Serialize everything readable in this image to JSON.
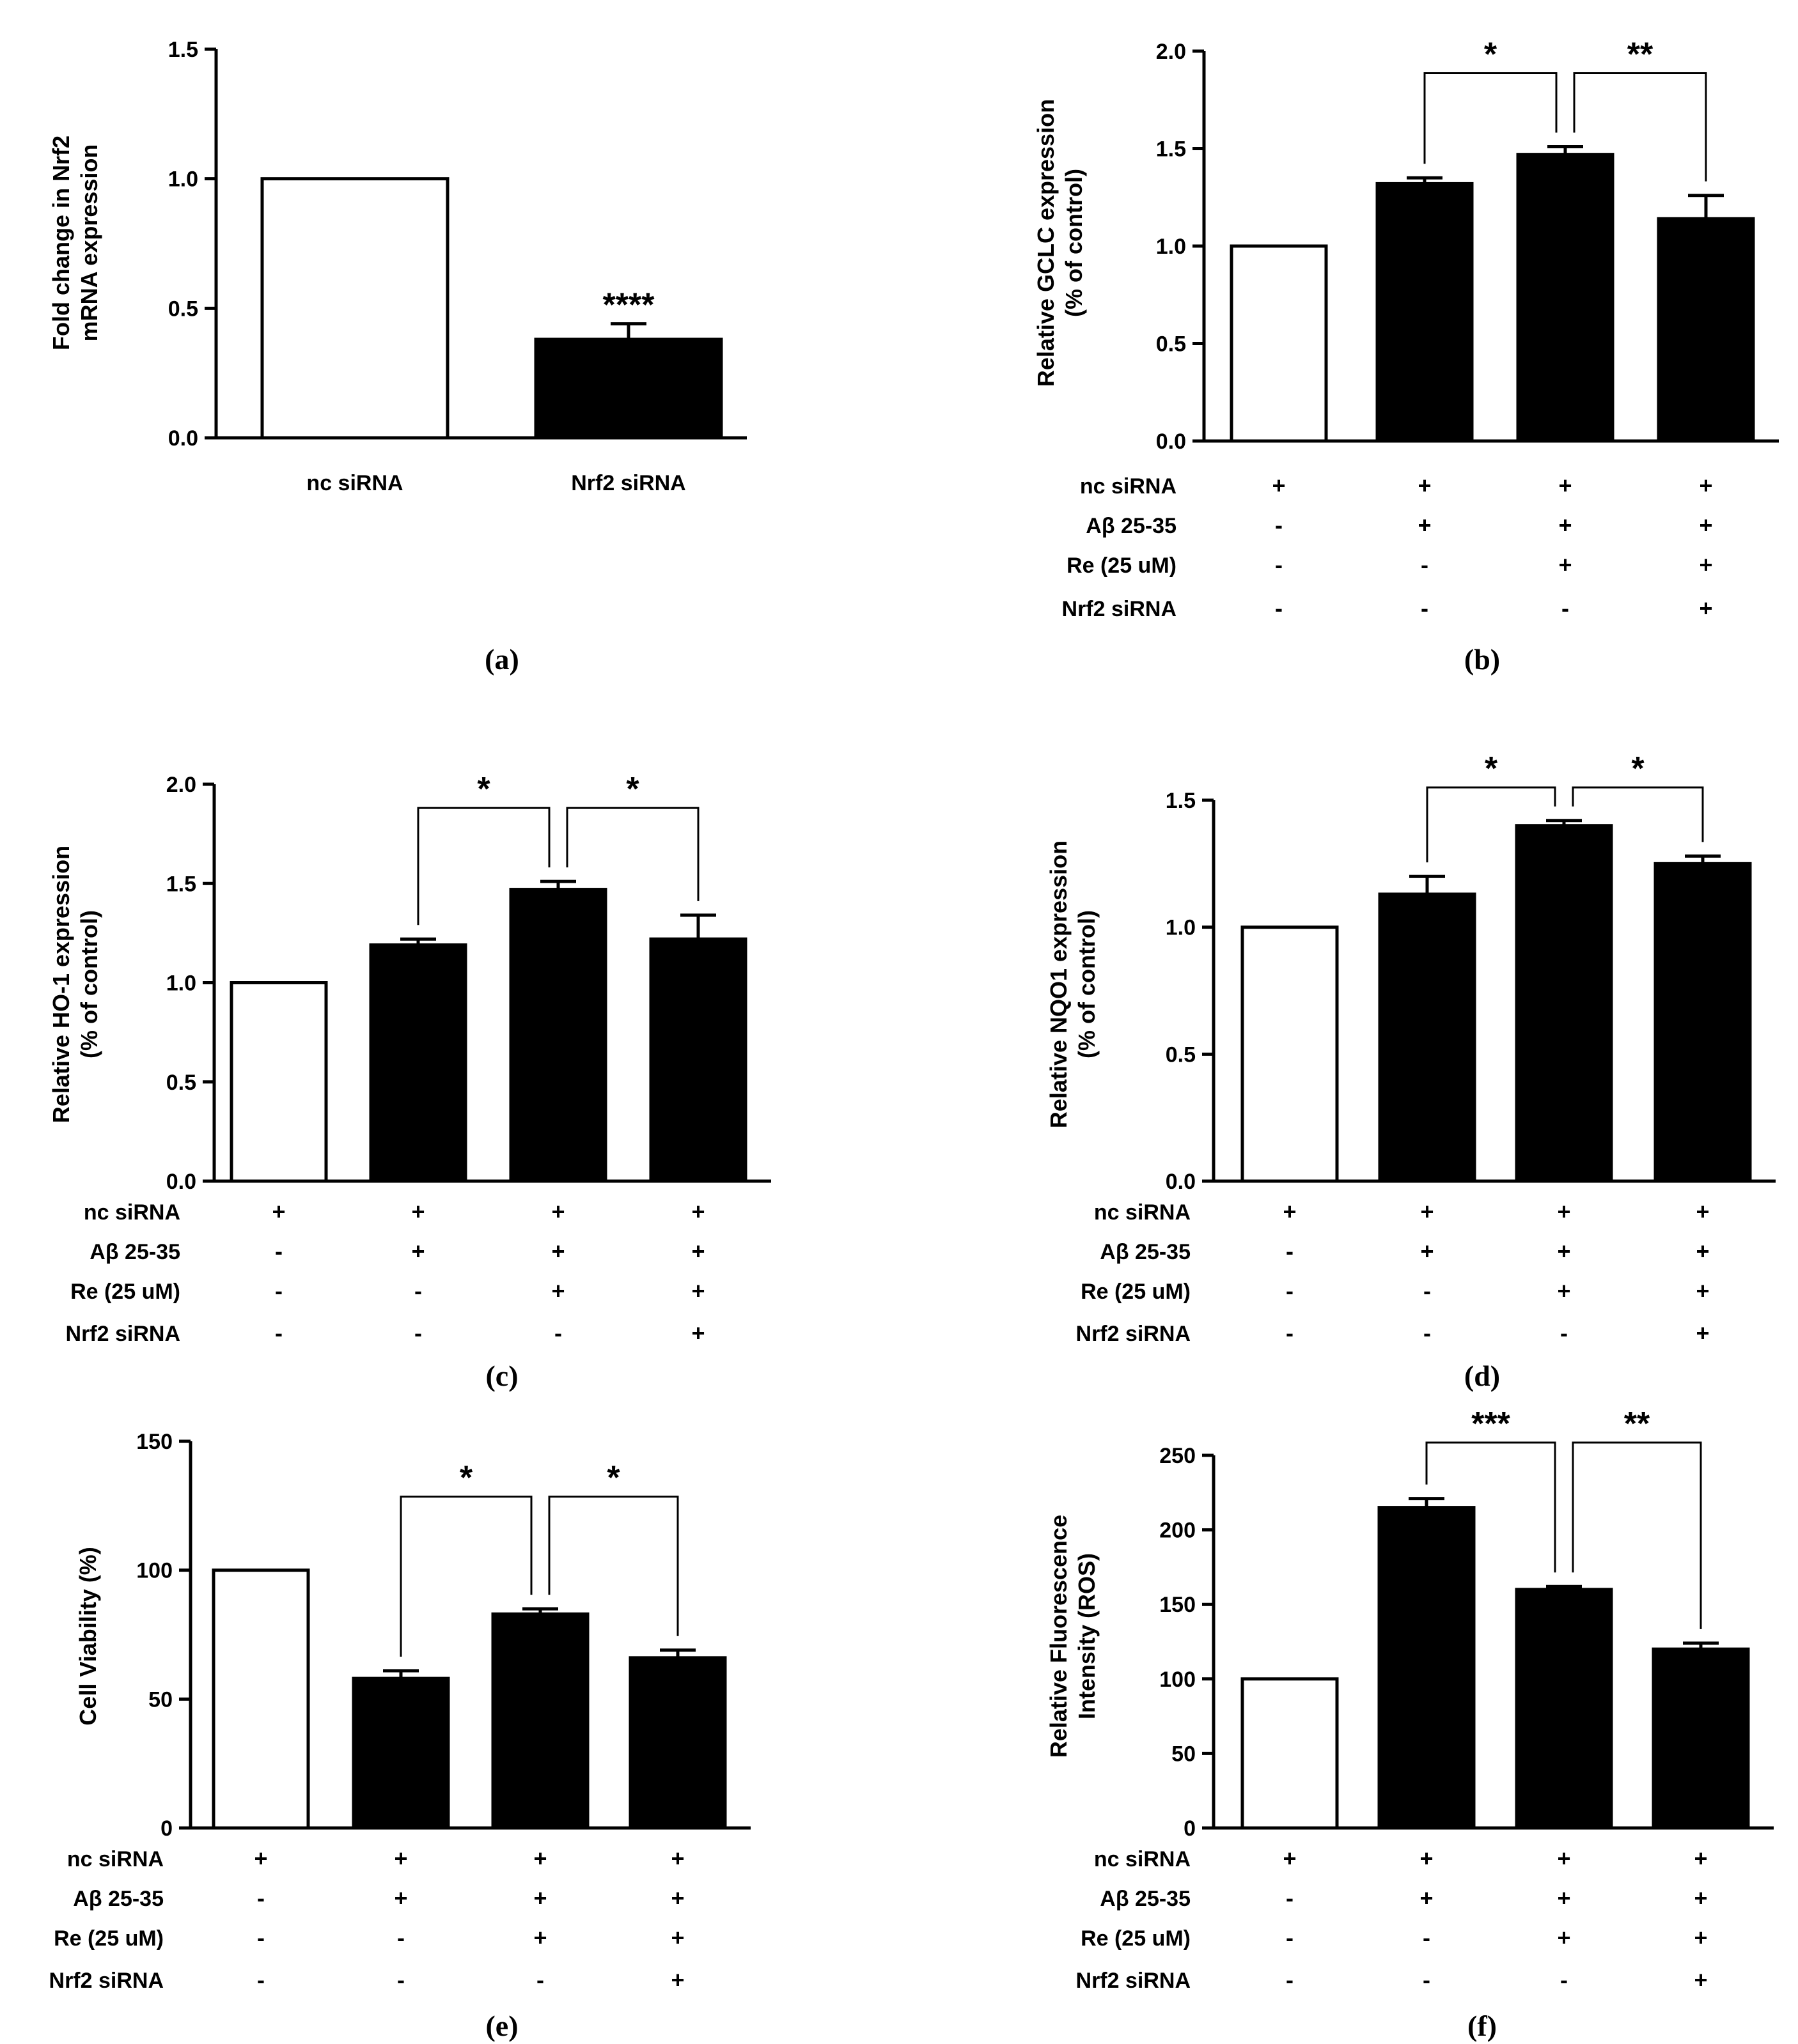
{
  "figure_caption_note": "",
  "chart_data": [
    {
      "id": "a",
      "type": "bar",
      "caption": "(a)",
      "ylabel_lines": [
        "Fold change in Nrf2",
        "mRNA expression"
      ],
      "ylim": [
        0,
        1.5
      ],
      "ytick_labels": [
        "0.0",
        "0.5",
        "1.0",
        "1.5"
      ],
      "yticks": [
        0,
        0.5,
        1.0,
        1.5
      ],
      "categories": [
        "nc siRNA",
        "Nrf2 siRNA"
      ],
      "values": [
        1.0,
        0.38
      ],
      "errors": [
        0,
        0.06
      ],
      "fills": [
        "white",
        "black"
      ],
      "annotations": [
        {
          "bar": 1,
          "text": "****"
        }
      ],
      "brackets": []
    },
    {
      "id": "b",
      "type": "bar",
      "caption": "(b)",
      "ylabel_lines": [
        "Relative GCLC expression",
        "(% of control)"
      ],
      "ylim": [
        0,
        2.0
      ],
      "ytick_labels": [
        "0.0",
        "0.5",
        "1.0",
        "1.5",
        "2.0"
      ],
      "yticks": [
        0,
        0.5,
        1.0,
        1.5,
        2.0
      ],
      "values": [
        1.0,
        1.32,
        1.47,
        1.14
      ],
      "errors": [
        0,
        0.03,
        0.04,
        0.12
      ],
      "fills": [
        "white",
        "black",
        "black",
        "black"
      ],
      "condition_labels": [
        "nc siRNA",
        "Aβ 25-35",
        "Re (25 uM)",
        "Nrf2 siRNA"
      ],
      "condition_matrix": [
        [
          "+",
          "+",
          "+",
          "+"
        ],
        [
          "-",
          "+",
          "+",
          "+"
        ],
        [
          "-",
          "-",
          "+",
          "+"
        ],
        [
          "-",
          "-",
          "-",
          "+"
        ]
      ],
      "brackets": [
        {
          "from": 1,
          "to": 2,
          "label": "*"
        },
        {
          "from": 2,
          "to": 3,
          "label": "**"
        }
      ]
    },
    {
      "id": "c",
      "type": "bar",
      "caption": "(c)",
      "ylabel_lines": [
        "Relative HO-1 expression",
        "(% of control)"
      ],
      "ylim": [
        0,
        2.0
      ],
      "ytick_labels": [
        "0.0",
        "0.5",
        "1.0",
        "1.5",
        "2.0"
      ],
      "yticks": [
        0,
        0.5,
        1.0,
        1.5,
        2.0
      ],
      "values": [
        1.0,
        1.19,
        1.47,
        1.22
      ],
      "errors": [
        0,
        0.03,
        0.04,
        0.12
      ],
      "fills": [
        "white",
        "black",
        "black",
        "black"
      ],
      "condition_labels": [
        "nc siRNA",
        "Aβ 25-35",
        "Re (25 uM)",
        "Nrf2 siRNA"
      ],
      "condition_matrix": [
        [
          "+",
          "+",
          "+",
          "+"
        ],
        [
          "-",
          "+",
          "+",
          "+"
        ],
        [
          "-",
          "-",
          "+",
          "+"
        ],
        [
          "-",
          "-",
          "-",
          "+"
        ]
      ],
      "brackets": [
        {
          "from": 1,
          "to": 2,
          "label": "*"
        },
        {
          "from": 2,
          "to": 3,
          "label": "*"
        }
      ]
    },
    {
      "id": "d",
      "type": "bar",
      "caption": "(d)",
      "ylabel_lines": [
        "Relative NQO1 expression",
        "(% of control)"
      ],
      "ylim": [
        0,
        1.5
      ],
      "ytick_labels": [
        "0.0",
        "0.5",
        "1.0",
        "1.5"
      ],
      "yticks": [
        0,
        0.5,
        1.0,
        1.5
      ],
      "values": [
        1.0,
        1.13,
        1.4,
        1.25
      ],
      "errors": [
        0,
        0.07,
        0.02,
        0.03
      ],
      "fills": [
        "white",
        "black",
        "black",
        "black"
      ],
      "condition_labels": [
        "nc siRNA",
        "Aβ 25-35",
        "Re (25 uM)",
        "Nrf2 siRNA"
      ],
      "condition_matrix": [
        [
          "+",
          "+",
          "+",
          "+"
        ],
        [
          "-",
          "+",
          "+",
          "+"
        ],
        [
          "-",
          "-",
          "+",
          "+"
        ],
        [
          "-",
          "-",
          "-",
          "+"
        ]
      ],
      "brackets": [
        {
          "from": 1,
          "to": 2,
          "label": "*"
        },
        {
          "from": 2,
          "to": 3,
          "label": "*"
        }
      ]
    },
    {
      "id": "e",
      "type": "bar",
      "caption": "(e)",
      "ylabel_lines": [
        "Cell Viability (%)"
      ],
      "ylim": [
        0,
        150
      ],
      "ytick_labels": [
        "0",
        "50",
        "100",
        "150"
      ],
      "yticks": [
        0,
        50,
        100,
        150
      ],
      "values": [
        100,
        58,
        83,
        66
      ],
      "errors": [
        0,
        3,
        2,
        3
      ],
      "fills": [
        "white",
        "black",
        "black",
        "black"
      ],
      "condition_labels": [
        "nc siRNA",
        "Aβ 25-35",
        "Re (25 uM)",
        "Nrf2 siRNA"
      ],
      "condition_matrix": [
        [
          "+",
          "+",
          "+",
          "+"
        ],
        [
          "-",
          "+",
          "+",
          "+"
        ],
        [
          "-",
          "-",
          "+",
          "+"
        ],
        [
          "-",
          "-",
          "-",
          "+"
        ]
      ],
      "brackets": [
        {
          "from": 1,
          "to": 2,
          "label": "*"
        },
        {
          "from": 2,
          "to": 3,
          "label": "*"
        }
      ]
    },
    {
      "id": "f",
      "type": "bar",
      "caption": "(f)",
      "ylabel_lines": [
        "Relative Fluorescence",
        "Intensity (ROS)"
      ],
      "ylim": [
        0,
        250
      ],
      "ytick_labels": [
        "0",
        "50",
        "100",
        "150",
        "200",
        "250"
      ],
      "yticks": [
        0,
        50,
        100,
        150,
        200,
        250
      ],
      "values": [
        100,
        215,
        160,
        120
      ],
      "errors": [
        0,
        6,
        2,
        4
      ],
      "fills": [
        "white",
        "black",
        "black",
        "black"
      ],
      "condition_labels": [
        "nc siRNA",
        "Aβ 25-35",
        "Re (25 uM)",
        "Nrf2 siRNA"
      ],
      "condition_matrix": [
        [
          "+",
          "+",
          "+",
          "+"
        ],
        [
          "-",
          "+",
          "+",
          "+"
        ],
        [
          "-",
          "-",
          "+",
          "+"
        ],
        [
          "-",
          "-",
          "-",
          "+"
        ]
      ],
      "brackets": [
        {
          "from": 1,
          "to": 2,
          "label": "***"
        },
        {
          "from": 2,
          "to": 3,
          "label": "**"
        }
      ]
    }
  ]
}
